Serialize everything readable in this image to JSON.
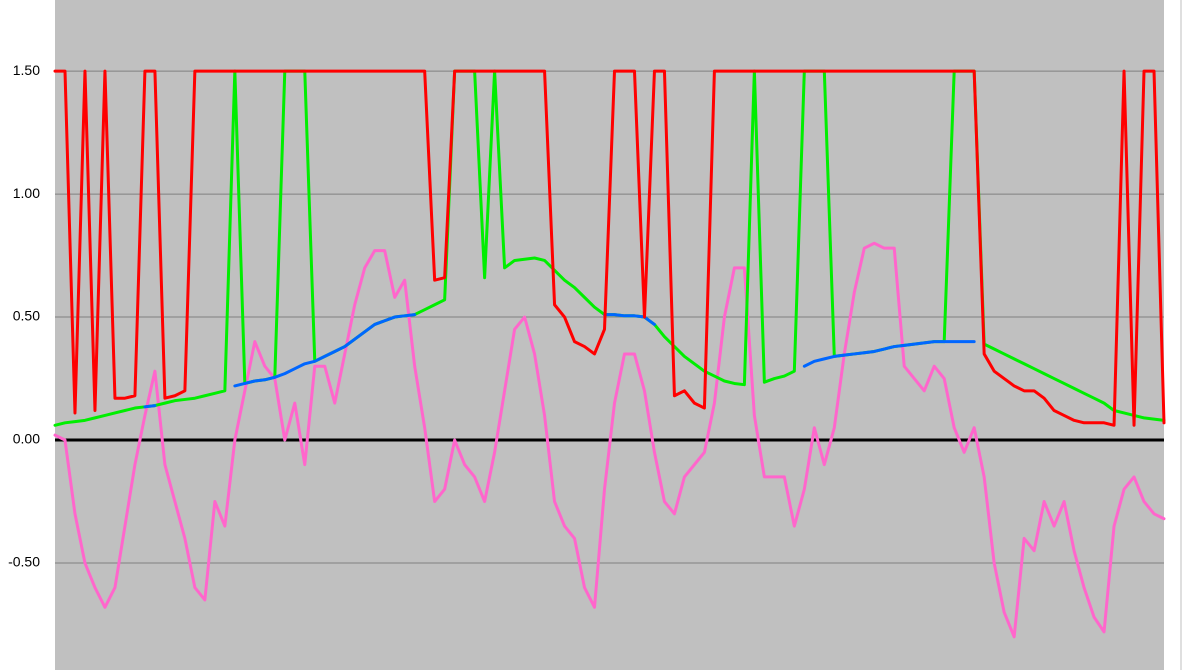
{
  "chart_data": {
    "type": "line",
    "ylim": [
      -0.935,
      1.789
    ],
    "yticks": [
      {
        "value": -0.5,
        "label": "-0.50"
      },
      {
        "value": 0,
        "label": "0.00"
      },
      {
        "value": 0.5,
        "label": "0.50"
      },
      {
        "value": 1.0,
        "label": "1.00"
      },
      {
        "value": 1.5,
        "label": "1.50"
      }
    ],
    "grid": true,
    "series": [
      {
        "color": "#ff66cc",
        "values": [
          0.02,
          0,
          -0.3,
          -0.5,
          -0.6,
          -0.68,
          -0.6,
          -0.35,
          -0.1,
          0.1,
          0.28,
          -0.1,
          -0.25,
          -0.4,
          -0.6,
          -0.65,
          -0.25,
          -0.35,
          0,
          0.2,
          0.4,
          0.3,
          0.25,
          0,
          0.15,
          -0.1,
          0.3,
          0.3,
          0.15,
          0.35,
          0.55,
          0.7,
          0.77,
          0.77,
          0.58,
          0.65,
          0.3,
          0.05,
          -0.25,
          -0.2,
          0,
          -0.1,
          -0.15,
          -0.25,
          -0.05,
          0.2,
          0.45,
          0.5,
          0.35,
          0.1,
          -0.25,
          -0.35,
          -0.4,
          -0.6,
          -0.68,
          -0.2,
          0.15,
          0.35,
          0.35,
          0.2,
          -0.05,
          -0.25,
          -0.3,
          -0.15,
          -0.1,
          -0.05,
          0.15,
          0.5,
          0.7,
          0.7,
          0.1,
          -0.15,
          -0.15,
          -0.15,
          -0.35,
          -0.2,
          0.05,
          -0.1,
          0.05,
          0.35,
          0.6,
          0.78,
          0.8,
          0.78,
          0.78,
          0.3,
          0.25,
          0.2,
          0.3,
          0.25,
          0.05,
          -0.05,
          0.05,
          -0.15,
          -0.5,
          -0.7,
          -0.8,
          -0.4,
          -0.45,
          -0.25,
          -0.35,
          -0.25,
          -0.45,
          -0.6,
          -0.72,
          -0.78,
          -0.35,
          -0.2,
          -0.15,
          -0.25,
          -0.3,
          -0.32
        ]
      },
      {
        "color": "#00ee00",
        "values": [
          0.06,
          0.07,
          0.075,
          0.08,
          0.09,
          0.1,
          0.11,
          0.12,
          0.13,
          0.135,
          0.14,
          0.15,
          0.16,
          0.165,
          0.17,
          0.18,
          0.19,
          0.2,
          1.5,
          0.23,
          0.24,
          0.245,
          0.255,
          1.5,
          1.5,
          1.5,
          0.32,
          0.34,
          0.36,
          0.38,
          0.41,
          0.44,
          0.47,
          0.485,
          0.5,
          0.505,
          0.51,
          0.53,
          0.55,
          0.57,
          1.5,
          1.5,
          1.5,
          0.66,
          1.5,
          0.7,
          0.73,
          0.735,
          0.74,
          0.73,
          0.69,
          0.65,
          0.62,
          0.58,
          0.54,
          0.51,
          0.51,
          0.505,
          0.505,
          0.5,
          0.47,
          0.42,
          0.38,
          0.34,
          0.31,
          0.28,
          0.26,
          0.24,
          0.23,
          0.225,
          1.5,
          0.235,
          0.25,
          0.26,
          0.28,
          1.5,
          1.5,
          1.5,
          0.34,
          0.345,
          0.35,
          0.355,
          0.36,
          0.37,
          0.38,
          0.385,
          0.39,
          0.395,
          0.4,
          0.4,
          1.5,
          1.5,
          1.5,
          0.39,
          0.37,
          0.35,
          0.33,
          0.31,
          0.29,
          0.27,
          0.25,
          0.23,
          0.21,
          0.19,
          0.17,
          0.15,
          0.12,
          0.11,
          0.1,
          0.09,
          0.085,
          0.08
        ]
      },
      {
        "color": "#0066ff",
        "values": [
          null,
          null,
          null,
          null,
          null,
          null,
          null,
          null,
          null,
          0.135,
          0.14,
          null,
          null,
          null,
          null,
          null,
          null,
          null,
          0.22,
          0.23,
          0.24,
          0.245,
          0.255,
          0.27,
          0.29,
          0.31,
          0.32,
          0.34,
          0.36,
          0.38,
          0.41,
          0.44,
          0.47,
          0.485,
          0.5,
          0.505,
          0.51,
          null,
          null,
          null,
          null,
          null,
          null,
          null,
          null,
          null,
          null,
          null,
          null,
          null,
          null,
          null,
          null,
          null,
          null,
          0.51,
          0.51,
          0.505,
          0.505,
          0.5,
          0.47,
          null,
          null,
          null,
          null,
          null,
          null,
          null,
          null,
          null,
          null,
          null,
          null,
          null,
          null,
          0.3,
          0.32,
          0.33,
          0.34,
          0.345,
          0.35,
          0.355,
          0.36,
          0.37,
          0.38,
          0.385,
          0.39,
          0.395,
          0.4,
          0.4,
          0.4,
          0.4,
          0.4,
          null,
          null,
          null,
          null,
          null,
          null,
          null,
          null,
          null,
          null,
          null,
          null,
          null,
          null,
          null,
          null,
          null,
          null,
          null
        ]
      },
      {
        "color": "#ff0000",
        "values": [
          1.5,
          1.5,
          0.11,
          1.5,
          0.12,
          1.5,
          0.17,
          0.17,
          0.18,
          1.5,
          1.5,
          0.17,
          0.18,
          0.2,
          1.5,
          1.5,
          1.5,
          1.5,
          1.5,
          1.5,
          1.5,
          1.5,
          1.5,
          1.5,
          1.5,
          1.5,
          1.5,
          1.5,
          1.5,
          1.5,
          1.5,
          1.5,
          1.5,
          1.5,
          1.5,
          1.5,
          1.5,
          1.5,
          0.65,
          0.66,
          1.5,
          1.5,
          1.5,
          1.5,
          1.5,
          1.5,
          1.5,
          1.5,
          1.5,
          1.5,
          0.55,
          0.5,
          0.4,
          0.38,
          0.35,
          0.45,
          1.5,
          1.5,
          1.5,
          0.5,
          1.5,
          1.5,
          0.18,
          0.2,
          0.15,
          0.13,
          1.5,
          1.5,
          1.5,
          1.5,
          1.5,
          1.5,
          1.5,
          1.5,
          1.5,
          1.5,
          1.5,
          1.5,
          1.5,
          1.5,
          1.5,
          1.5,
          1.5,
          1.5,
          1.5,
          1.5,
          1.5,
          1.5,
          1.5,
          1.5,
          1.5,
          1.5,
          1.5,
          0.35,
          0.28,
          0.25,
          0.22,
          0.2,
          0.2,
          0.17,
          0.12,
          0.1,
          0.08,
          0.07,
          0.07,
          0.07,
          0.06,
          1.5,
          0.06,
          1.5,
          1.5,
          0.07
        ]
      }
    ]
  }
}
